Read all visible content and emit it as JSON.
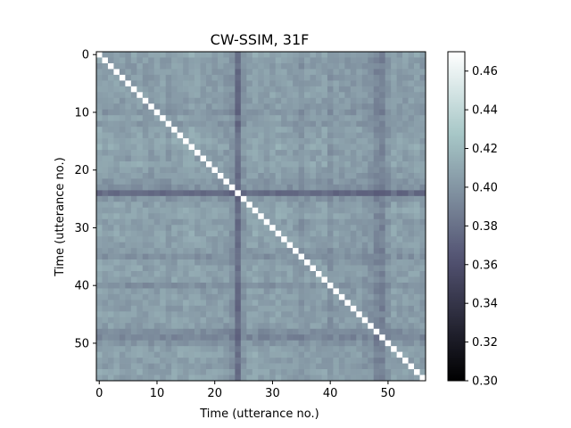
{
  "chart_data": {
    "type": "heatmap",
    "title": "CW-SSIM, 31F",
    "xlabel": "Time (utterance no.)",
    "ylabel": "Time (utterance no.)",
    "n": 57,
    "x_ticks": [
      0,
      10,
      20,
      30,
      40,
      50
    ],
    "y_ticks": [
      0,
      10,
      20,
      30,
      40,
      50
    ],
    "colorbar": {
      "min": 0.3,
      "max": 0.47,
      "ticks": [
        "0.30",
        "0.32",
        "0.34",
        "0.36",
        "0.38",
        "0.40",
        "0.42",
        "0.44",
        "0.46"
      ]
    },
    "colormap": "bone",
    "diagonal_value": 1.0,
    "row_profile": [
      0.41,
      0.405,
      0.403,
      0.404,
      0.404,
      0.405,
      0.405,
      0.408,
      0.403,
      0.402,
      0.398,
      0.406,
      0.399,
      0.408,
      0.408,
      0.413,
      0.415,
      0.406,
      0.405,
      0.413,
      0.405,
      0.403,
      0.399,
      0.394,
      0.362,
      0.398,
      0.406,
      0.413,
      0.412,
      0.404,
      0.407,
      0.409,
      0.408,
      0.406,
      0.402,
      0.394,
      0.404,
      0.408,
      0.409,
      0.407,
      0.394,
      0.404,
      0.405,
      0.407,
      0.403,
      0.407,
      0.407,
      0.404,
      0.392,
      0.386,
      0.398,
      0.408,
      0.41,
      0.405,
      0.404,
      0.409,
      0.408
    ],
    "col_profile": [
      0.411,
      0.405,
      0.407,
      0.41,
      0.405,
      0.403,
      0.405,
      0.408,
      0.403,
      0.402,
      0.405,
      0.406,
      0.401,
      0.408,
      0.408,
      0.408,
      0.413,
      0.406,
      0.405,
      0.404,
      0.405,
      0.404,
      0.402,
      0.395,
      0.365,
      0.398,
      0.406,
      0.41,
      0.405,
      0.404,
      0.407,
      0.409,
      0.406,
      0.406,
      0.402,
      0.396,
      0.404,
      0.406,
      0.405,
      0.407,
      0.395,
      0.404,
      0.402,
      0.401,
      0.4,
      0.404,
      0.398,
      0.396,
      0.386,
      0.382,
      0.398,
      0.408,
      0.404,
      0.405,
      0.404,
      0.409,
      0.401
    ]
  }
}
